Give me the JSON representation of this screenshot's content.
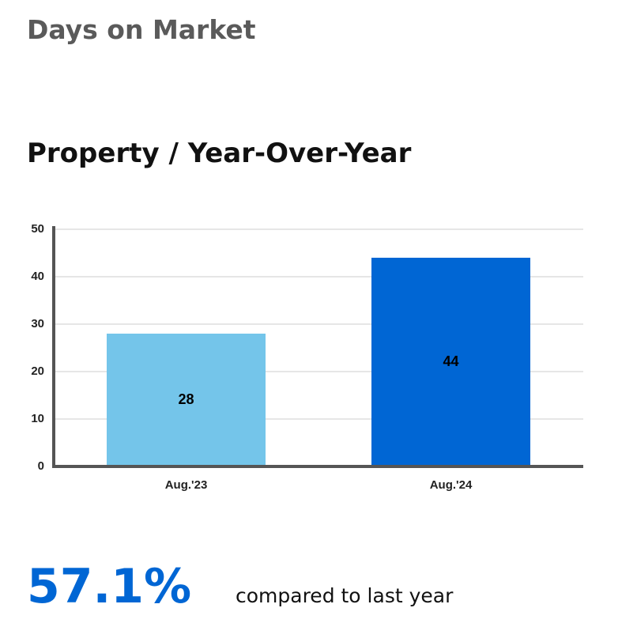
{
  "header": {
    "title": "Days on Market"
  },
  "chart_data": {
    "type": "bar",
    "title": "Property / Year-Over-Year",
    "categories": [
      "Aug.'23",
      "Aug.'24"
    ],
    "values": [
      28,
      44
    ],
    "colors": [
      "#74c5ea",
      "#0066d4"
    ],
    "ylim": [
      0,
      50
    ],
    "yticks": [
      0,
      10,
      20,
      30,
      40,
      50
    ],
    "grid": true
  },
  "summary": {
    "change": "57.1%",
    "text": "compared to last year"
  }
}
